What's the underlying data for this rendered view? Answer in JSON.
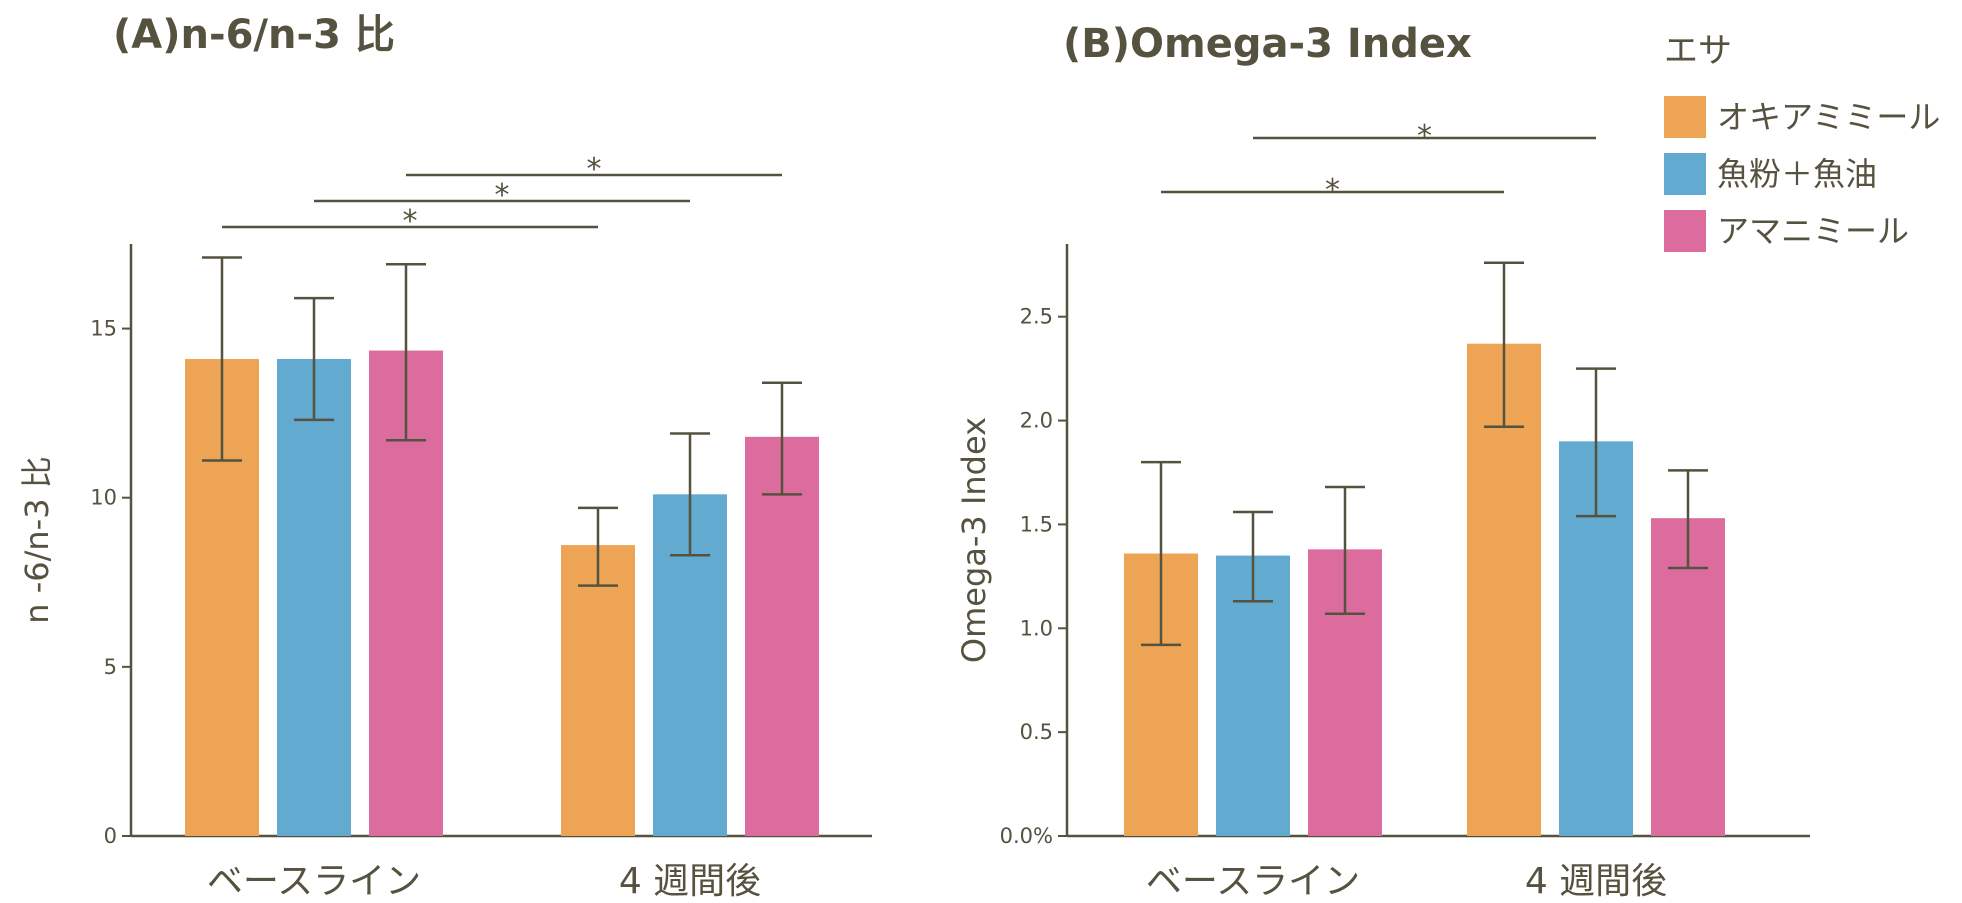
{
  "chart_data": [
    {
      "type": "bar",
      "title": "(A)n-6/n-3 比",
      "ylabel": "n -6/n-3 比",
      "xlabel": "",
      "ylim": [
        0,
        17.5
      ],
      "yticks": [
        0,
        5,
        10,
        15
      ],
      "ytick_labels": [
        "0",
        "5",
        "10",
        "15"
      ],
      "categories": [
        "ベースライン",
        "4 週間後"
      ],
      "series": [
        {
          "name": "オキアミミール",
          "values": [
            14.1,
            8.6
          ],
          "err_low": [
            11.1,
            7.4
          ],
          "err_high": [
            17.1,
            9.7
          ]
        },
        {
          "name": "魚粉＋魚油",
          "values": [
            14.1,
            10.1
          ],
          "err_low": [
            12.3,
            8.3
          ],
          "err_high": [
            15.9,
            11.9
          ]
        },
        {
          "name": "アマニミール",
          "values": [
            14.35,
            11.8
          ],
          "err_low": [
            11.7,
            10.1
          ],
          "err_high": [
            16.9,
            13.4
          ]
        }
      ],
      "significance": [
        {
          "from": [
            0,
            0
          ],
          "to": [
            1,
            0
          ],
          "label": "*"
        },
        {
          "from": [
            0,
            1
          ],
          "to": [
            1,
            1
          ],
          "label": "*"
        },
        {
          "from": [
            0,
            2
          ],
          "to": [
            1,
            2
          ],
          "label": "*"
        }
      ],
      "grid": false
    },
    {
      "type": "bar",
      "title": "(B)Omega-3 Index",
      "ylabel": "Omega-3 Index",
      "xlabel": "",
      "ylim": [
        0,
        2.85
      ],
      "yticks": [
        0,
        0.5,
        1.0,
        1.5,
        2.0,
        2.5
      ],
      "ytick_labels": [
        "0.0%",
        "0.5",
        "1.0",
        "1.5",
        "2.0",
        "2.5"
      ],
      "categories": [
        "ベースライン",
        "4 週間後"
      ],
      "series": [
        {
          "name": "オキアミミール",
          "values": [
            1.36,
            2.37
          ],
          "err_low": [
            0.92,
            1.97
          ],
          "err_high": [
            1.8,
            2.76
          ]
        },
        {
          "name": "魚粉＋魚油",
          "values": [
            1.35,
            1.9
          ],
          "err_low": [
            1.13,
            1.54
          ],
          "err_high": [
            1.56,
            2.25
          ]
        },
        {
          "name": "アマニミール",
          "values": [
            1.38,
            1.53
          ],
          "err_low": [
            1.07,
            1.29
          ],
          "err_high": [
            1.68,
            1.76
          ]
        }
      ],
      "significance": [
        {
          "from": [
            0,
            0
          ],
          "to": [
            1,
            0
          ],
          "label": "*"
        },
        {
          "from": [
            0,
            1
          ],
          "to": [
            1,
            1
          ],
          "label": "*"
        }
      ],
      "grid": false
    }
  ],
  "legend": {
    "title": "エサ",
    "placement": "top-right",
    "items": [
      {
        "label": "オキアミミール",
        "color": "#eda455"
      },
      {
        "label": "魚粉＋魚油",
        "color": "#62aacf"
      },
      {
        "label": "アマニミール",
        "color": "#dc6c9e"
      }
    ]
  },
  "colors": {
    "axis": "#55523f",
    "series": [
      "#eda455",
      "#62aacf",
      "#dc6c9e"
    ]
  }
}
